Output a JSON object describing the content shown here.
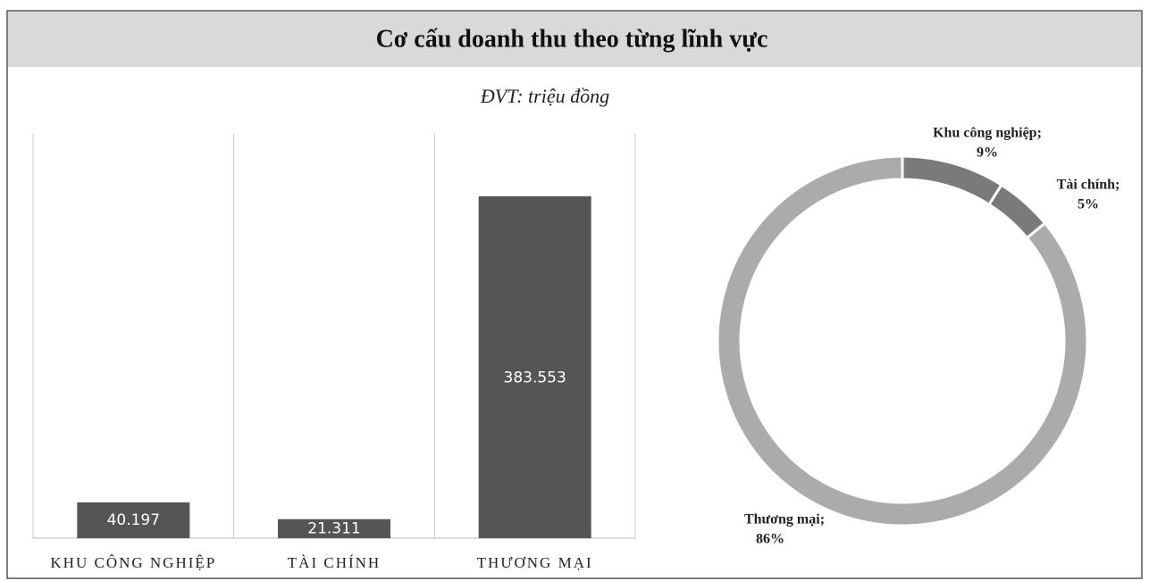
{
  "title": "Cơ cấu doanh thu theo từng lĩnh vực",
  "chart_data": [
    {
      "type": "bar",
      "subtitle": "ĐVT: triệu đồng",
      "categories": [
        "KHU CÔNG NGHIỆP",
        "TÀI CHÍNH",
        "THƯƠNG MẠI"
      ],
      "values": [
        40197,
        21311,
        383553
      ],
      "value_labels": [
        "40.197",
        "21.311",
        "383.553"
      ],
      "color": "#555555"
    },
    {
      "type": "pie",
      "categories": [
        "Khu công nghiệp;",
        "Tài chính;",
        "Thương mại;"
      ],
      "values": [
        9,
        5,
        86
      ],
      "value_labels": [
        "9%",
        "5%",
        "86%"
      ],
      "colors": [
        "#7a7a7a",
        "#7a7a7a",
        "#ababab"
      ]
    }
  ]
}
